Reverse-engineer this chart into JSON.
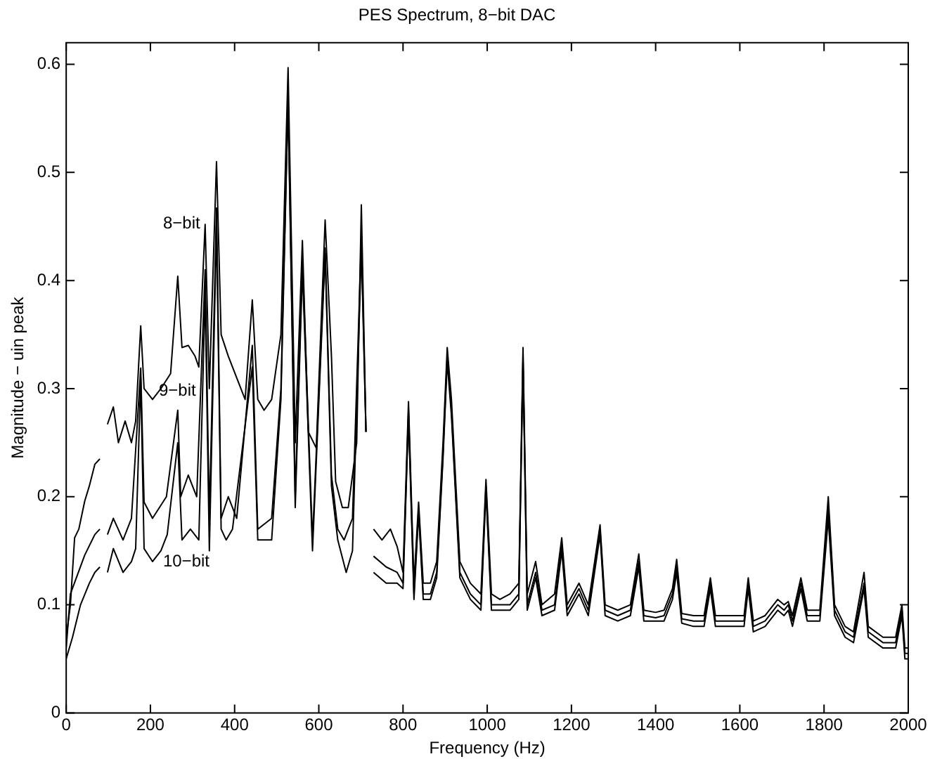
{
  "chart_data": {
    "type": "line",
    "title": "PES Spectrum, 8−bit DAC",
    "xlabel": "Frequency (Hz)",
    "ylabel": "Magnitude − uin peak",
    "xlim": [
      0,
      2000
    ],
    "ylim": [
      0,
      0.62
    ],
    "xticks": [
      0,
      200,
      400,
      600,
      800,
      1000,
      1200,
      1400,
      1600,
      1800,
      2000
    ],
    "yticks": [
      0,
      0.1,
      0.2,
      0.3,
      0.4,
      0.5,
      0.6
    ],
    "series": [
      {
        "name": "8−bit",
        "color": "#000000",
        "x": [
          0,
          10,
          20,
          30,
          44,
          55,
          68,
          80,
          85,
          93,
          98,
          112,
          124,
          140,
          155,
          165,
          177,
          185,
          205,
          225,
          248,
          265,
          275,
          290,
          306,
          315,
          330,
          340,
          357,
          368,
          385,
          405,
          425,
          442,
          455,
          470,
          488,
          510,
          527,
          544,
          561,
          575,
          594,
          615,
          630,
          640,
          656,
          670,
          690,
          701,
          712,
          716,
          724,
          730,
          750,
          770,
          786,
          800,
          813,
          826,
          837,
          848,
          865,
          880,
          895,
          905,
          915,
          935,
          960,
          985,
          997,
          1010,
          1030,
          1054,
          1075,
          1085,
          1095,
          1115,
          1130,
          1160,
          1177,
          1190,
          1218,
          1240,
          1268,
          1280,
          1310,
          1340,
          1360,
          1372,
          1400,
          1420,
          1440,
          1450,
          1462,
          1490,
          1515,
          1530,
          1542,
          1580,
          1610,
          1620,
          1632,
          1660,
          1690,
          1705,
          1715,
          1725,
          1745,
          1760,
          1790,
          1810,
          1825,
          1850,
          1870,
          1895,
          1905,
          1940,
          1970,
          1985,
          1992,
          2000
        ],
        "values": [
          0.07,
          0.1,
          0.162,
          0.17,
          0.196,
          0.21,
          0.23,
          0.235,
          null,
          null,
          0.267,
          0.283,
          0.25,
          0.27,
          0.25,
          0.27,
          0.358,
          0.3,
          0.29,
          0.3,
          0.314,
          0.404,
          0.338,
          0.34,
          0.33,
          0.32,
          0.452,
          0.3,
          0.51,
          0.35,
          0.33,
          0.31,
          0.29,
          0.382,
          0.29,
          0.28,
          0.29,
          0.35,
          0.597,
          0.25,
          0.437,
          0.26,
          0.245,
          0.456,
          0.33,
          0.214,
          0.19,
          0.19,
          0.25,
          0.47,
          0.26,
          null,
          null,
          0.17,
          0.16,
          0.17,
          0.154,
          0.13,
          0.288,
          0.12,
          0.195,
          0.12,
          0.12,
          0.14,
          0.25,
          0.338,
          0.29,
          0.14,
          0.12,
          0.11,
          0.216,
          0.11,
          0.105,
          0.11,
          0.12,
          0.338,
          0.11,
          0.14,
          0.1,
          0.11,
          0.162,
          0.1,
          0.12,
          0.1,
          0.174,
          0.1,
          0.095,
          0.1,
          0.147,
          0.095,
          0.093,
          0.095,
          0.115,
          0.142,
          0.092,
          0.09,
          0.09,
          0.125,
          0.09,
          0.09,
          0.09,
          0.125,
          0.085,
          0.09,
          0.105,
          0.1,
          0.103,
          0.09,
          0.125,
          0.095,
          0.095,
          0.2,
          0.1,
          0.08,
          0.075,
          0.13,
          0.08,
          0.07,
          0.07,
          0.1,
          0.06,
          0.06
        ]
      },
      {
        "name": "9−bit",
        "color": "#000000",
        "x": [
          0,
          10,
          44,
          68,
          80,
          85,
          93,
          98,
          112,
          135,
          155,
          177,
          185,
          205,
          238,
          265,
          272,
          290,
          310,
          330,
          340,
          357,
          368,
          385,
          405,
          442,
          455,
          488,
          510,
          527,
          544,
          561,
          585,
          615,
          630,
          645,
          660,
          680,
          701,
          712,
          716,
          724,
          730,
          760,
          786,
          800,
          813,
          826,
          837,
          848,
          865,
          880,
          895,
          905,
          915,
          935,
          960,
          985,
          997,
          1010,
          1030,
          1054,
          1075,
          1085,
          1095,
          1115,
          1130,
          1160,
          1177,
          1190,
          1218,
          1240,
          1268,
          1280,
          1310,
          1340,
          1360,
          1372,
          1400,
          1420,
          1440,
          1450,
          1462,
          1490,
          1515,
          1530,
          1542,
          1580,
          1610,
          1620,
          1632,
          1660,
          1690,
          1705,
          1715,
          1725,
          1745,
          1760,
          1790,
          1810,
          1825,
          1850,
          1870,
          1895,
          1905,
          1940,
          1970,
          1985,
          1992,
          2000
        ],
        "values": [
          0.06,
          0.11,
          0.146,
          0.165,
          0.17,
          null,
          null,
          0.165,
          0.18,
          0.16,
          0.18,
          0.319,
          0.195,
          0.18,
          0.2,
          0.28,
          0.2,
          0.22,
          0.2,
          0.41,
          0.18,
          0.467,
          0.18,
          0.2,
          0.18,
          0.34,
          0.17,
          0.18,
          0.3,
          0.57,
          0.2,
          0.42,
          0.16,
          0.43,
          0.22,
          0.17,
          0.16,
          0.18,
          0.44,
          0.26,
          null,
          null,
          0.145,
          0.135,
          0.13,
          0.12,
          0.28,
          0.11,
          0.19,
          0.11,
          0.11,
          0.13,
          0.24,
          0.33,
          0.28,
          0.13,
          0.11,
          0.1,
          0.21,
          0.1,
          0.1,
          0.1,
          0.11,
          0.33,
          0.1,
          0.13,
          0.095,
          0.1,
          0.155,
          0.095,
          0.115,
          0.095,
          0.17,
          0.095,
          0.09,
          0.095,
          0.14,
          0.09,
          0.088,
          0.09,
          0.11,
          0.135,
          0.087,
          0.085,
          0.085,
          0.12,
          0.085,
          0.085,
          0.085,
          0.12,
          0.08,
          0.085,
          0.1,
          0.095,
          0.1,
          0.085,
          0.12,
          0.09,
          0.09,
          0.19,
          0.095,
          0.075,
          0.07,
          0.12,
          0.075,
          0.065,
          0.065,
          0.095,
          0.055,
          0.055
        ]
      },
      {
        "name": "10−bit",
        "color": "#000000",
        "x": [
          0,
          15,
          34,
          55,
          68,
          80,
          85,
          93,
          98,
          112,
          135,
          155,
          165,
          177,
          185,
          205,
          225,
          240,
          265,
          275,
          295,
          315,
          330,
          340,
          357,
          368,
          380,
          395,
          442,
          455,
          488,
          510,
          527,
          544,
          561,
          585,
          615,
          630,
          645,
          665,
          680,
          701,
          712,
          716,
          724,
          730,
          760,
          786,
          800,
          813,
          826,
          837,
          848,
          865,
          880,
          895,
          905,
          915,
          935,
          960,
          985,
          997,
          1010,
          1030,
          1054,
          1075,
          1085,
          1095,
          1115,
          1130,
          1160,
          1177,
          1190,
          1218,
          1240,
          1268,
          1280,
          1310,
          1340,
          1360,
          1372,
          1400,
          1420,
          1440,
          1450,
          1462,
          1490,
          1515,
          1530,
          1542,
          1580,
          1610,
          1620,
          1632,
          1660,
          1690,
          1705,
          1715,
          1725,
          1745,
          1760,
          1790,
          1810,
          1825,
          1850,
          1870,
          1895,
          1905,
          1940,
          1970,
          1985,
          1992,
          2000
        ],
        "values": [
          0.05,
          0.07,
          0.1,
          0.12,
          0.13,
          0.135,
          null,
          null,
          0.13,
          0.152,
          0.13,
          0.14,
          0.152,
          0.31,
          0.152,
          0.14,
          0.15,
          0.165,
          0.25,
          0.16,
          0.17,
          0.16,
          0.39,
          0.15,
          0.45,
          0.17,
          0.16,
          0.17,
          0.32,
          0.16,
          0.16,
          0.29,
          0.565,
          0.19,
          0.41,
          0.15,
          0.425,
          0.21,
          0.16,
          0.13,
          0.15,
          0.43,
          0.26,
          null,
          null,
          0.13,
          0.12,
          0.12,
          0.115,
          0.275,
          0.105,
          0.185,
          0.105,
          0.105,
          0.125,
          0.235,
          0.325,
          0.275,
          0.125,
          0.105,
          0.095,
          0.205,
          0.095,
          0.095,
          0.095,
          0.105,
          0.325,
          0.095,
          0.125,
          0.09,
          0.095,
          0.15,
          0.09,
          0.11,
          0.09,
          0.165,
          0.09,
          0.085,
          0.09,
          0.135,
          0.085,
          0.085,
          0.085,
          0.105,
          0.13,
          0.083,
          0.08,
          0.08,
          0.115,
          0.08,
          0.08,
          0.08,
          0.115,
          0.075,
          0.08,
          0.095,
          0.09,
          0.095,
          0.08,
          0.115,
          0.085,
          0.085,
          0.18,
          0.09,
          0.07,
          0.065,
          0.115,
          0.07,
          0.06,
          0.06,
          0.09,
          0.05,
          0.05
        ]
      }
    ]
  }
}
